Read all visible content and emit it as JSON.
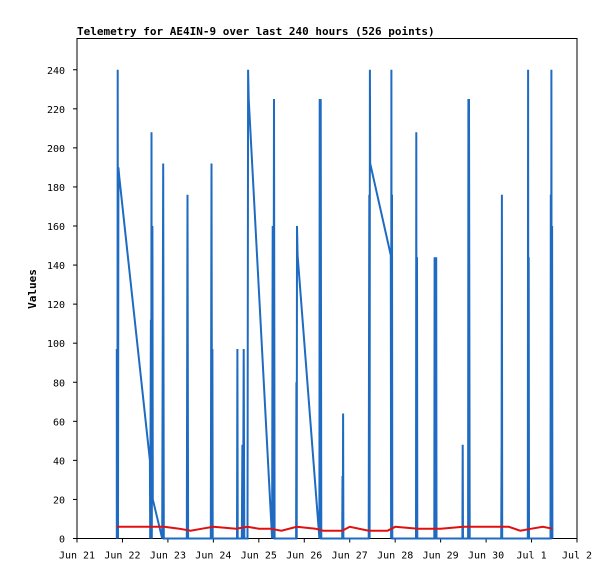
{
  "chart_data": {
    "type": "line",
    "title": "Telemetry for AE4IN-9 over last 240 hours (526 points)",
    "xlabel": "",
    "ylabel": "Values",
    "ylim": [
      0,
      256
    ],
    "yticks": [
      0,
      20,
      40,
      60,
      80,
      100,
      120,
      140,
      160,
      180,
      200,
      220,
      240
    ],
    "xlim": [
      "2023-06-21T00:00",
      "2023-07-02T00:00"
    ],
    "xticks": [
      {
        "t": "2023-06-21T00:00",
        "label": "Jun 21"
      },
      {
        "t": "2023-06-22T00:00",
        "label": "Jun 22"
      },
      {
        "t": "2023-06-23T00:00",
        "label": "Jun 23"
      },
      {
        "t": "2023-06-24T00:00",
        "label": "Jun 24"
      },
      {
        "t": "2023-06-25T00:00",
        "label": "Jun 25"
      },
      {
        "t": "2023-06-26T00:00",
        "label": "Jun 26"
      },
      {
        "t": "2023-06-27T00:00",
        "label": "Jun 27"
      },
      {
        "t": "2023-06-28T00:00",
        "label": "Jun 28"
      },
      {
        "t": "2023-06-29T00:00",
        "label": "Jun 29"
      },
      {
        "t": "2023-06-30T00:00",
        "label": "Jun 30"
      },
      {
        "t": "2023-07-01T00:00",
        "label": "Jul 1"
      },
      {
        "t": "2023-07-02T00:00",
        "label": "Jul 2"
      }
    ],
    "grid": false,
    "series": [
      {
        "color": "#1f6bc1",
        "points": [
          [
            "2023-06-21T21:00",
            0
          ],
          [
            "2023-06-21T21:00",
            97
          ],
          [
            "2023-06-21T21:20",
            0
          ],
          [
            "2023-06-21T21:30",
            240
          ],
          [
            "2023-06-21T21:40",
            0
          ],
          [
            "2023-06-21T21:50",
            190
          ],
          [
            "2023-06-21T22:20",
            185
          ],
          [
            "2023-06-22T14:30",
            40
          ],
          [
            "2023-06-22T14:40",
            0
          ],
          [
            "2023-06-22T15:00",
            112
          ],
          [
            "2023-06-22T15:10",
            0
          ],
          [
            "2023-06-22T15:20",
            208
          ],
          [
            "2023-06-22T15:30",
            0
          ],
          [
            "2023-06-22T15:50",
            160
          ],
          [
            "2023-06-22T16:00",
            20
          ],
          [
            "2023-06-22T21:00",
            0
          ],
          [
            "2023-06-22T21:30",
            192
          ],
          [
            "2023-06-22T21:50",
            0
          ],
          [
            "2023-06-23T10:00",
            0
          ],
          [
            "2023-06-23T10:20",
            176
          ],
          [
            "2023-06-23T10:40",
            0
          ],
          [
            "2023-06-23T22:40",
            0
          ],
          [
            "2023-06-23T23:00",
            192
          ],
          [
            "2023-06-23T23:20",
            0
          ],
          [
            "2023-06-23T23:30",
            97
          ],
          [
            "2023-06-23T23:40",
            0
          ],
          [
            "2023-06-24T12:30",
            0
          ],
          [
            "2023-06-24T12:40",
            97
          ],
          [
            "2023-06-24T12:50",
            0
          ],
          [
            "2023-06-24T15:00",
            0
          ],
          [
            "2023-06-24T15:20",
            48
          ],
          [
            "2023-06-24T15:40",
            0
          ],
          [
            "2023-06-24T16:00",
            97
          ],
          [
            "2023-06-24T16:20",
            0
          ],
          [
            "2023-06-24T18:00",
            0
          ],
          [
            "2023-06-24T18:20",
            240
          ],
          [
            "2023-06-24T18:40",
            225
          ],
          [
            "2023-06-25T07:00",
            0
          ],
          [
            "2023-06-25T07:20",
            160
          ],
          [
            "2023-06-25T07:40",
            0
          ],
          [
            "2023-06-25T08:00",
            225
          ],
          [
            "2023-06-25T08:20",
            0
          ],
          [
            "2023-06-25T19:40",
            0
          ],
          [
            "2023-06-25T19:50",
            80
          ],
          [
            "2023-06-25T20:00",
            0
          ],
          [
            "2023-06-25T20:10",
            160
          ],
          [
            "2023-06-25T20:30",
            145
          ],
          [
            "2023-06-26T08:00",
            0
          ],
          [
            "2023-06-26T08:10",
            225
          ],
          [
            "2023-06-26T08:30",
            0
          ],
          [
            "2023-06-26T08:40",
            225
          ],
          [
            "2023-06-26T09:00",
            0
          ],
          [
            "2023-06-26T20:00",
            0
          ],
          [
            "2023-06-26T20:10",
            32
          ],
          [
            "2023-06-26T20:20",
            0
          ],
          [
            "2023-06-26T20:30",
            64
          ],
          [
            "2023-06-26T20:40",
            0
          ],
          [
            "2023-06-27T10:00",
            0
          ],
          [
            "2023-06-27T10:10",
            97
          ],
          [
            "2023-06-27T10:20",
            176
          ],
          [
            "2023-06-27T10:30",
            0
          ],
          [
            "2023-06-27T10:40",
            240
          ],
          [
            "2023-06-27T10:50",
            192
          ],
          [
            "2023-06-27T21:40",
            145
          ],
          [
            "2023-06-27T21:50",
            0
          ],
          [
            "2023-06-27T22:00",
            240
          ],
          [
            "2023-06-27T22:10",
            0
          ],
          [
            "2023-06-27T22:20",
            176
          ],
          [
            "2023-06-27T22:30",
            0
          ],
          [
            "2023-06-28T11:00",
            0
          ],
          [
            "2023-06-28T11:10",
            208
          ],
          [
            "2023-06-28T11:20",
            0
          ],
          [
            "2023-06-28T11:30",
            144
          ],
          [
            "2023-06-28T11:40",
            0
          ],
          [
            "2023-06-28T20:40",
            0
          ],
          [
            "2023-06-28T20:50",
            144
          ],
          [
            "2023-06-28T21:00",
            0
          ],
          [
            "2023-06-28T21:10",
            128
          ],
          [
            "2023-06-28T21:20",
            0
          ],
          [
            "2023-06-28T21:40",
            144
          ],
          [
            "2023-06-28T21:50",
            0
          ],
          [
            "2023-06-29T11:30",
            0
          ],
          [
            "2023-06-29T11:40",
            48
          ],
          [
            "2023-06-29T11:50",
            0
          ],
          [
            "2023-06-29T14:30",
            0
          ],
          [
            "2023-06-29T14:40",
            225
          ],
          [
            "2023-06-29T14:50",
            0
          ],
          [
            "2023-06-29T15:00",
            225
          ],
          [
            "2023-06-29T15:10",
            97
          ],
          [
            "2023-06-29T15:20",
            0
          ],
          [
            "2023-06-30T08:00",
            0
          ],
          [
            "2023-06-30T08:10",
            48
          ],
          [
            "2023-06-30T08:20",
            176
          ],
          [
            "2023-06-30T08:30",
            0
          ],
          [
            "2023-06-30T22:00",
            0
          ],
          [
            "2023-06-30T22:10",
            240
          ],
          [
            "2023-06-30T22:20",
            0
          ],
          [
            "2023-06-30T22:30",
            144
          ],
          [
            "2023-06-30T22:40",
            0
          ],
          [
            "2023-07-01T10:00",
            0
          ],
          [
            "2023-07-01T10:10",
            176
          ],
          [
            "2023-07-01T10:20",
            0
          ],
          [
            "2023-07-01T10:30",
            240
          ],
          [
            "2023-07-01T10:40",
            0
          ],
          [
            "2023-07-01T10:50",
            160
          ],
          [
            "2023-07-01T11:00",
            0
          ]
        ]
      },
      {
        "color": "#e01010",
        "points": [
          [
            "2023-06-21T21:00",
            6
          ],
          [
            "2023-06-22T06:00",
            6
          ],
          [
            "2023-06-22T15:00",
            6
          ],
          [
            "2023-06-22T22:00",
            6
          ],
          [
            "2023-06-23T06:00",
            5
          ],
          [
            "2023-06-23T12:00",
            4
          ],
          [
            "2023-06-23T18:00",
            5
          ],
          [
            "2023-06-24T00:00",
            6
          ],
          [
            "2023-06-24T12:00",
            5
          ],
          [
            "2023-06-24T18:00",
            6
          ],
          [
            "2023-06-25T00:00",
            5
          ],
          [
            "2023-06-25T06:00",
            5
          ],
          [
            "2023-06-25T12:00",
            4
          ],
          [
            "2023-06-25T20:00",
            6
          ],
          [
            "2023-06-26T06:00",
            5
          ],
          [
            "2023-06-26T10:00",
            4
          ],
          [
            "2023-06-26T20:00",
            4
          ],
          [
            "2023-06-27T00:00",
            6
          ],
          [
            "2023-06-27T10:00",
            4
          ],
          [
            "2023-06-27T20:00",
            4
          ],
          [
            "2023-06-28T00:00",
            6
          ],
          [
            "2023-06-28T12:00",
            5
          ],
          [
            "2023-06-29T00:00",
            5
          ],
          [
            "2023-06-29T12:00",
            6
          ],
          [
            "2023-06-30T00:00",
            6
          ],
          [
            "2023-06-30T12:00",
            6
          ],
          [
            "2023-06-30T18:00",
            4
          ],
          [
            "2023-07-01T00:00",
            5
          ],
          [
            "2023-07-01T06:00",
            6
          ],
          [
            "2023-07-01T11:00",
            5
          ]
        ]
      }
    ]
  }
}
